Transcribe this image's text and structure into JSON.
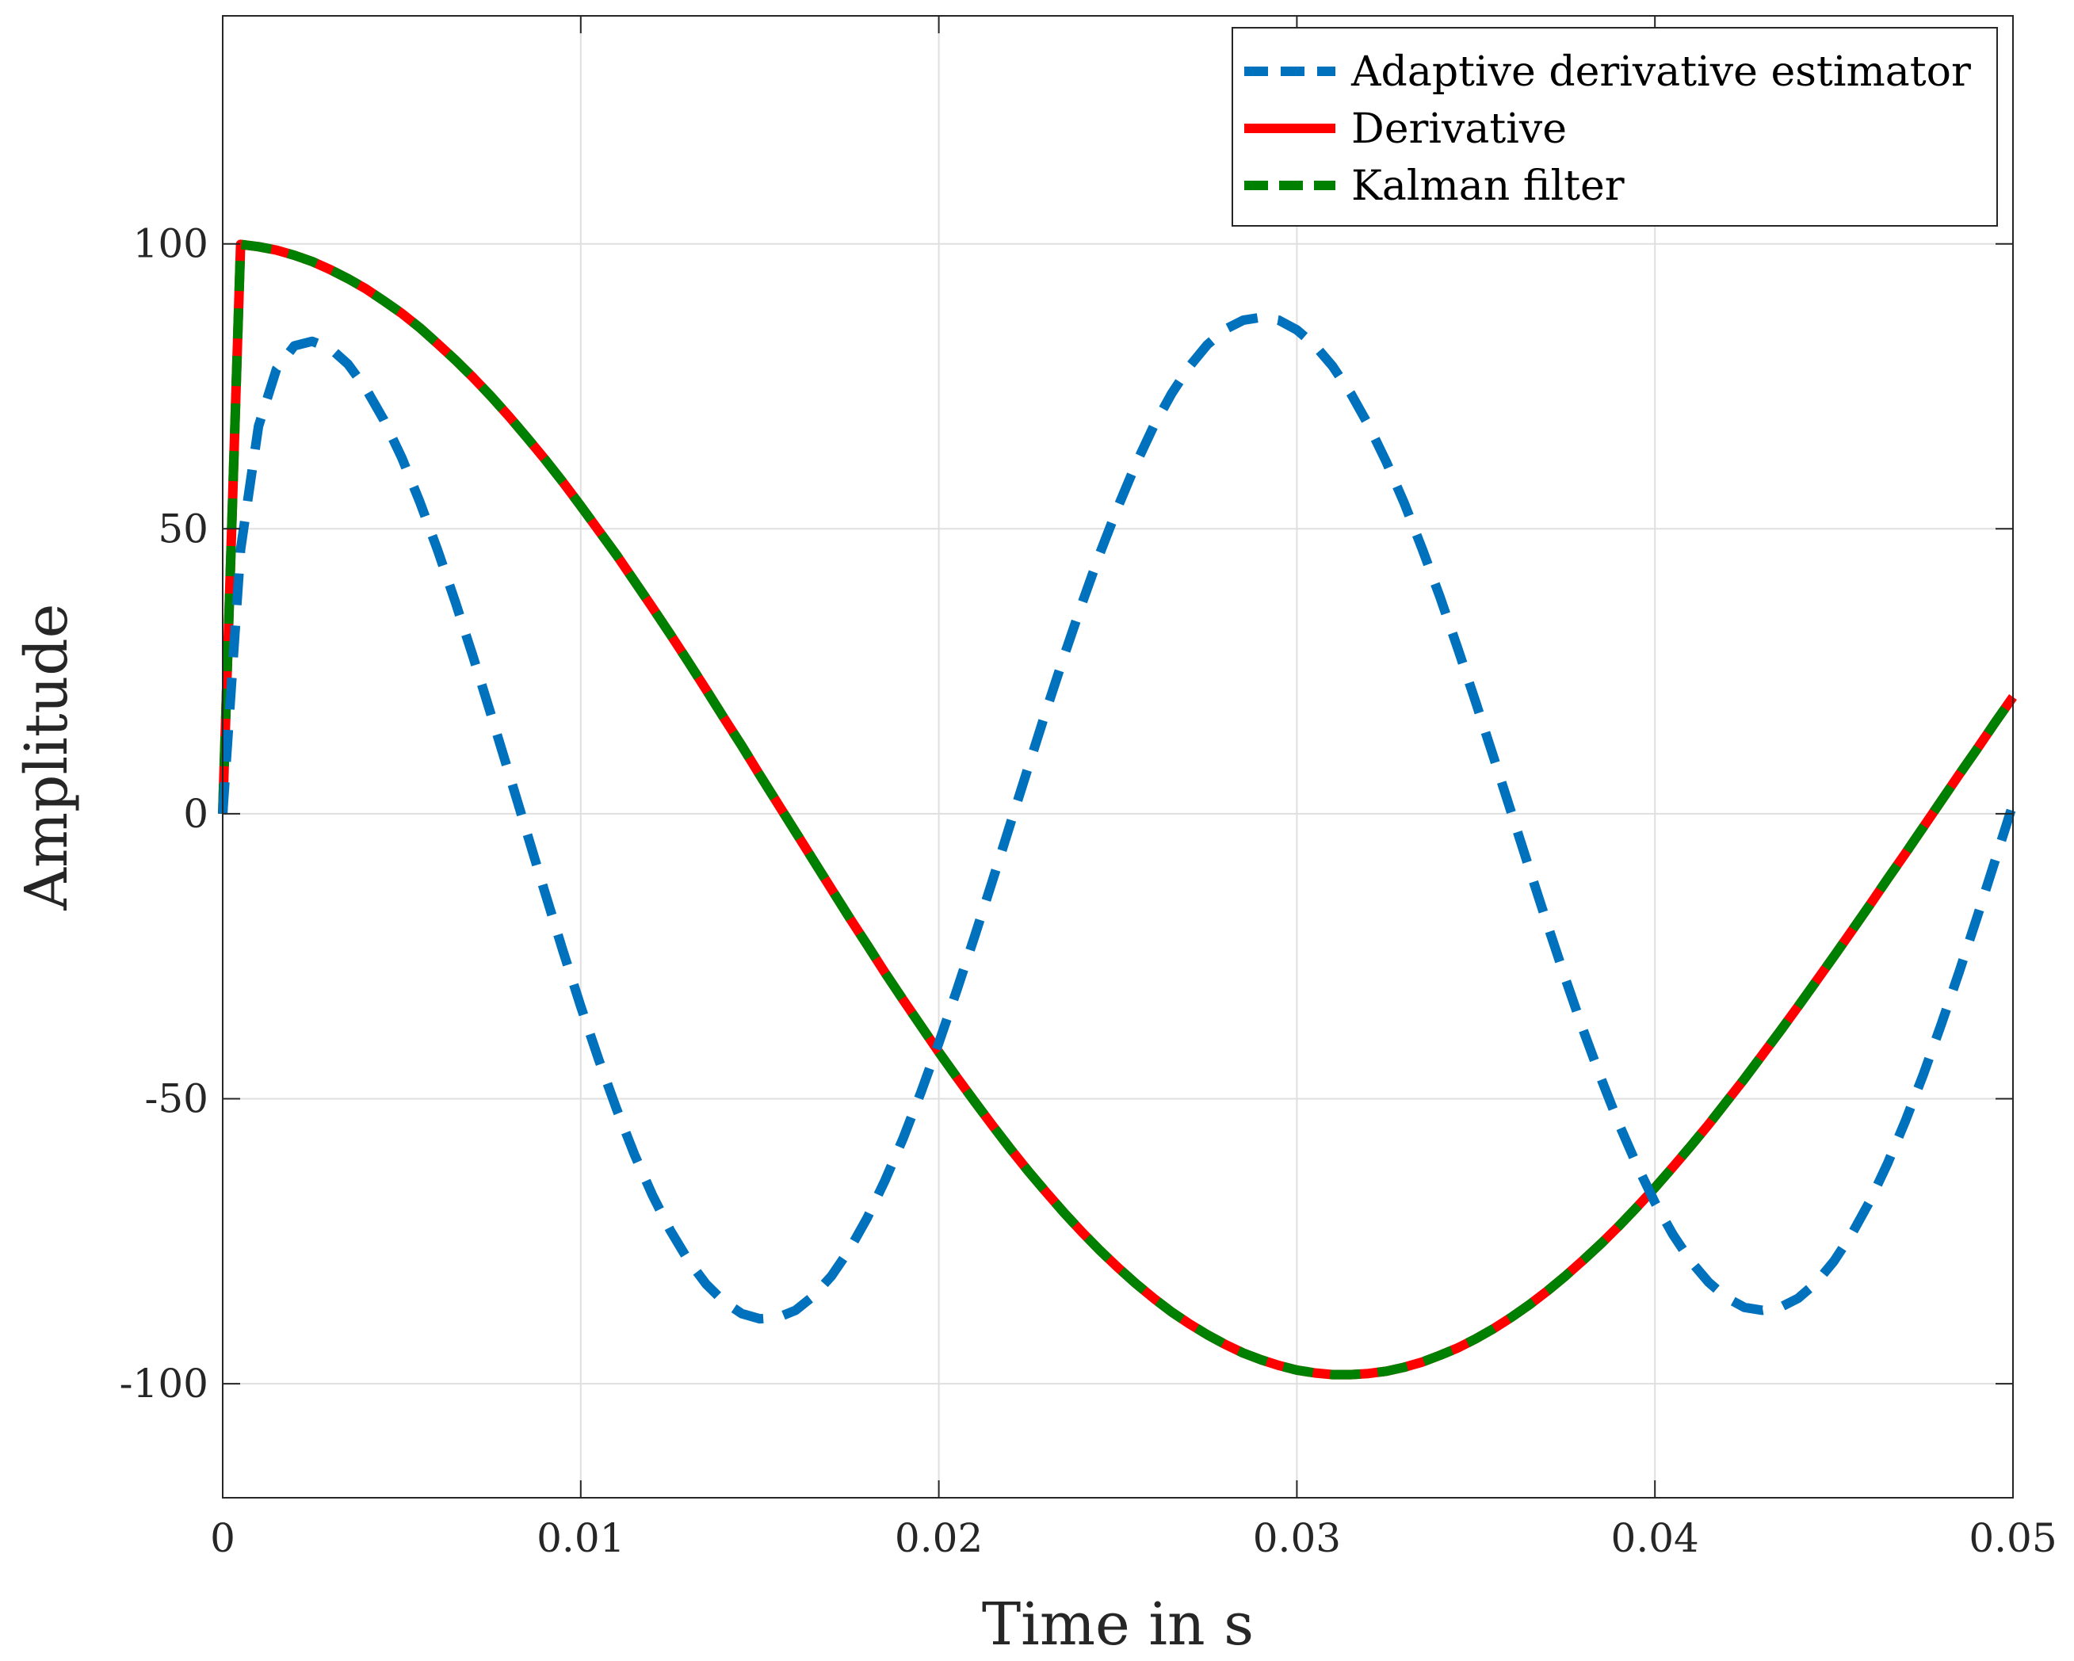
{
  "chart_data": {
    "type": "line",
    "title": "",
    "xlabel": "Time in s",
    "ylabel": "Amplitude",
    "xlim": [
      0,
      0.05
    ],
    "ylim": [
      -120,
      140
    ],
    "xticks": [
      0,
      0.01,
      0.02,
      0.03,
      0.04,
      0.05
    ],
    "xtick_labels": [
      "0",
      "0.01",
      "0.02",
      "0.03",
      "0.04",
      "0.05"
    ],
    "yticks": [
      -100,
      -50,
      0,
      50,
      100
    ],
    "ytick_labels": [
      "-100",
      "-50",
      "0",
      "50",
      "100"
    ],
    "grid": true,
    "legend_position": "top-right",
    "series": [
      {
        "name": "Adaptive derivative estimator",
        "color": "#0072BD",
        "style": "dashed",
        "x": [
          0,
          0.0005,
          0.001,
          0.0015,
          0.002,
          0.0025,
          0.003,
          0.0035,
          0.004,
          0.0045,
          0.005,
          0.0055,
          0.006,
          0.0065,
          0.007,
          0.0075,
          0.008,
          0.0085,
          0.009,
          0.0095,
          0.01,
          0.0105,
          0.011,
          0.0115,
          0.012,
          0.0125,
          0.013,
          0.0135,
          0.014,
          0.0145,
          0.015,
          0.0155,
          0.016,
          0.0165,
          0.017,
          0.0175,
          0.018,
          0.0185,
          0.019,
          0.0195,
          0.02,
          0.0205,
          0.021,
          0.0215,
          0.022,
          0.0225,
          0.023,
          0.0235,
          0.024,
          0.0245,
          0.025,
          0.0255,
          0.026,
          0.0265,
          0.027,
          0.0275,
          0.028,
          0.0285,
          0.029,
          0.0295,
          0.03,
          0.0305,
          0.031,
          0.0315,
          0.032,
          0.0325,
          0.033,
          0.0335,
          0.034,
          0.0345,
          0.035,
          0.0355,
          0.036,
          0.0365,
          0.037,
          0.0375,
          0.038,
          0.0385,
          0.039,
          0.0395,
          0.04,
          0.0405,
          0.041,
          0.0415,
          0.042,
          0.0425,
          0.043,
          0.0435,
          0.044,
          0.0445,
          0.045,
          0.0455,
          0.046,
          0.0465,
          0.047,
          0.0475,
          0.048,
          0.0485,
          0.049,
          0.0495,
          0.05
        ],
        "y": [
          0,
          46.4,
          68.0,
          78.0,
          82.1,
          82.9,
          81.7,
          78.9,
          74.6,
          69.1,
          62.5,
          54.8,
          46.3,
          37.1,
          27.4,
          17.3,
          7.0,
          -3.4,
          -13.8,
          -24.0,
          -33.8,
          -43.1,
          -51.8,
          -59.8,
          -66.9,
          -73.1,
          -78.3,
          -82.5,
          -85.6,
          -87.7,
          -88.6,
          -88.4,
          -87.1,
          -84.6,
          -81.1,
          -76.5,
          -70.9,
          -64.3,
          -57.0,
          -48.9,
          -40.2,
          -31.0,
          -21.5,
          -11.7,
          -1.7,
          8.2,
          18.1,
          27.7,
          36.9,
          45.7,
          53.8,
          61.3,
          68.0,
          73.7,
          78.5,
          82.3,
          85.0,
          86.6,
          87.1,
          86.6,
          84.9,
          82.2,
          78.5,
          73.8,
          68.2,
          61.7,
          54.5,
          46.5,
          38.0,
          28.9,
          19.5,
          9.8,
          0.0,
          -9.8,
          -19.5,
          -28.9,
          -38.0,
          -46.5,
          -54.5,
          -61.7,
          -68.2,
          -73.8,
          -78.5,
          -82.2,
          -84.9,
          -86.6,
          -87.1,
          -86.6,
          -85.0,
          -82.3,
          -78.5,
          -73.7,
          -68.0,
          -61.3,
          -53.8,
          -45.7,
          -36.9,
          -27.7,
          -18.1,
          -8.2,
          1.7
        ]
      },
      {
        "name": "Derivative",
        "color": "#FF0000",
        "style": "solid",
        "x": [
          0,
          0.0005,
          0.001,
          0.0015,
          0.002,
          0.0025,
          0.003,
          0.0035,
          0.004,
          0.0045,
          0.005,
          0.0055,
          0.006,
          0.0065,
          0.007,
          0.0075,
          0.008,
          0.0085,
          0.009,
          0.0095,
          0.01,
          0.0105,
          0.011,
          0.0115,
          0.012,
          0.0125,
          0.013,
          0.0135,
          0.014,
          0.0145,
          0.015,
          0.0155,
          0.016,
          0.0165,
          0.017,
          0.0175,
          0.018,
          0.0185,
          0.019,
          0.0195,
          0.02,
          0.0205,
          0.021,
          0.0215,
          0.022,
          0.0225,
          0.023,
          0.0235,
          0.024,
          0.0245,
          0.025,
          0.0255,
          0.026,
          0.0265,
          0.027,
          0.0275,
          0.028,
          0.0285,
          0.029,
          0.0295,
          0.03,
          0.0305,
          0.031,
          0.0315,
          0.032,
          0.0325,
          0.033,
          0.0335,
          0.034,
          0.0345,
          0.035,
          0.0355,
          0.036,
          0.0365,
          0.037,
          0.0375,
          0.038,
          0.0385,
          0.039,
          0.0395,
          0.04,
          0.0405,
          0.041,
          0.0415,
          0.042,
          0.0425,
          0.043,
          0.0435,
          0.044,
          0.0445,
          0.045,
          0.0455,
          0.046,
          0.0465,
          0.047,
          0.0475,
          0.048,
          0.0485,
          0.049,
          0.0495,
          0.05
        ],
        "y": [
          0,
          99.9,
          99.5,
          98.9,
          98.0,
          96.9,
          95.5,
          93.9,
          92.1,
          90.0,
          87.8,
          85.3,
          82.5,
          79.6,
          76.5,
          73.2,
          69.7,
          66.0,
          62.2,
          58.2,
          54.0,
          49.7,
          45.4,
          40.8,
          36.2,
          31.5,
          26.7,
          21.8,
          16.8,
          11.9,
          6.8,
          1.8,
          -3.2,
          -8.2,
          -13.2,
          -18.2,
          -23.0,
          -27.9,
          -32.6,
          -37.2,
          -41.8,
          -46.2,
          -50.5,
          -54.7,
          -58.8,
          -62.7,
          -66.4,
          -70.0,
          -73.4,
          -76.6,
          -79.6,
          -82.4,
          -85.0,
          -87.4,
          -89.5,
          -91.4,
          -93.1,
          -94.6,
          -95.8,
          -96.8,
          -97.6,
          -98.1,
          -98.4,
          -98.4,
          -98.2,
          -97.8,
          -97.1,
          -96.2,
          -95.0,
          -93.7,
          -92.1,
          -90.3,
          -88.3,
          -86.1,
          -83.7,
          -81.1,
          -78.3,
          -75.4,
          -72.3,
          -69.0,
          -65.6,
          -62.0,
          -58.3,
          -54.5,
          -50.5,
          -46.5,
          -42.3,
          -38.1,
          -33.8,
          -29.4,
          -25.0,
          -20.5,
          -16.0,
          -11.4,
          -6.9,
          -2.3,
          2.3,
          6.9,
          11.4,
          16.0,
          20.5
        ]
      },
      {
        "name": "Kalman filter",
        "color": "#008000",
        "style": "dashed",
        "x": [],
        "y": []
      }
    ]
  }
}
